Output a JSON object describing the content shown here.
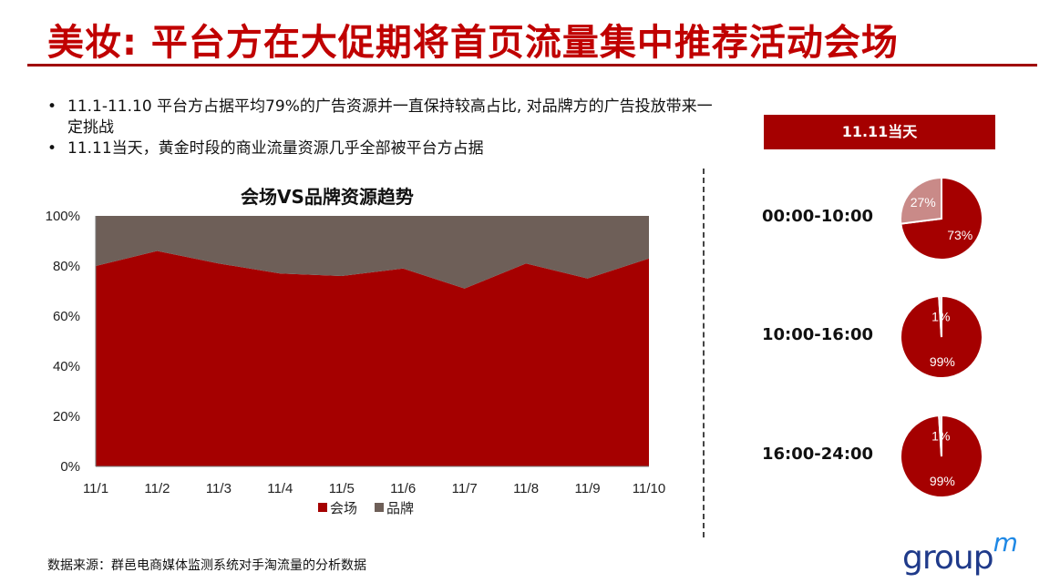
{
  "slide": {
    "title": "美妆: 平台方在大促期将首页流量集中推荐活动会场",
    "bullets": [
      "11.1-11.10 平台方占据平均79%的广告资源并一直保持较高占比, 对品牌方的广告投放带来一定挑战",
      "11.11当天，黄金时段的商业流量资源几乎全部被平台方占据"
    ],
    "source": "数据来源：群邑电商媒体监测系统对手淘流量的分析数据",
    "logo": {
      "text": "group",
      "mark": "m"
    }
  },
  "chart_data": [
    {
      "type": "area",
      "stacked": true,
      "title": "会场VS品牌资源趋势",
      "categories": [
        "11/1",
        "11/2",
        "11/3",
        "11/4",
        "11/5",
        "11/6",
        "11/7",
        "11/8",
        "11/9",
        "11/10"
      ],
      "series": [
        {
          "name": "会场",
          "color": "#a50000",
          "values": [
            80,
            86,
            81,
            77,
            76,
            79,
            71,
            81,
            75,
            83
          ]
        },
        {
          "name": "品牌",
          "color": "#6e5f58",
          "values": [
            20,
            14,
            19,
            23,
            24,
            21,
            29,
            19,
            25,
            17
          ]
        }
      ],
      "ylim": [
        0,
        100
      ],
      "yticks": [
        "0%",
        "20%",
        "40%",
        "60%",
        "80%",
        "100%"
      ],
      "legend": "bottom",
      "grid": false
    },
    {
      "type": "pie",
      "group_title": "11.11当天",
      "charts": [
        {
          "label": "00:00-10:00",
          "slices": [
            {
              "value": 73,
              "text": "73%",
              "color": "#a50000"
            },
            {
              "value": 27,
              "text": "27%",
              "color": "#c98a88"
            }
          ]
        },
        {
          "label": "10:00-16:00",
          "slices": [
            {
              "value": 99,
              "text": "99%",
              "color": "#a50000"
            },
            {
              "value": 1,
              "text": "1%",
              "color": "#e8d0d0"
            }
          ]
        },
        {
          "label": "16:00-24:00",
          "slices": [
            {
              "value": 99,
              "text": "99%",
              "color": "#a50000"
            },
            {
              "value": 1,
              "text": "1%",
              "color": "#e8d0d0"
            }
          ]
        }
      ]
    }
  ]
}
